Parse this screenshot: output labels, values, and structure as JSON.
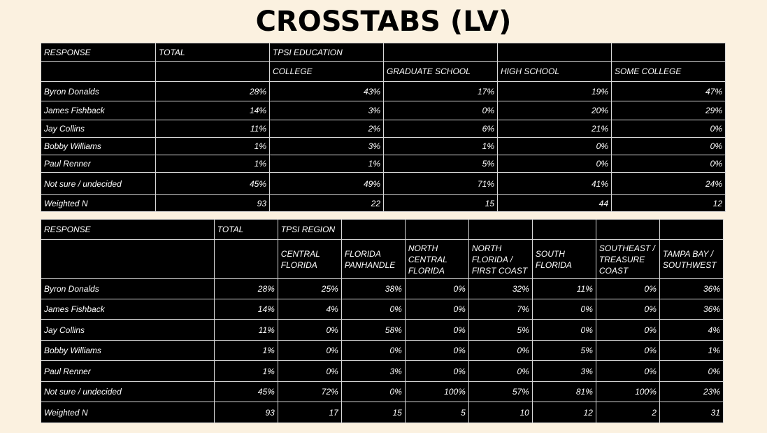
{
  "title": "CROSSTABS (LV)",
  "tables": [
    {
      "response_label": "RESPONSE",
      "total_label": "TOTAL",
      "group_label": "TPSI EDUCATION",
      "columns": [
        "COLLEGE",
        "GRADUATE SCHOOL",
        "HIGH SCHOOL",
        "SOME COLLEGE"
      ],
      "rows": [
        {
          "label": "Byron Donalds",
          "total": "28%",
          "values": [
            "43%",
            "17%",
            "19%",
            "47%"
          ]
        },
        {
          "label": "James Fishback",
          "total": "14%",
          "values": [
            "3%",
            "0%",
            "20%",
            "29%"
          ]
        },
        {
          "label": "Jay Collins",
          "total": "11%",
          "values": [
            "2%",
            "6%",
            "21%",
            "0%"
          ]
        },
        {
          "label": "Bobby Williams",
          "total": "1%",
          "values": [
            "3%",
            "1%",
            "0%",
            "0%"
          ]
        },
        {
          "label": "Paul Renner",
          "total": "1%",
          "values": [
            "1%",
            "5%",
            "0%",
            "0%"
          ]
        },
        {
          "label": "Not sure / undecided",
          "total": "45%",
          "values": [
            "49%",
            "71%",
            "41%",
            "24%"
          ]
        },
        {
          "label": "Weighted N",
          "total": "93",
          "values": [
            "22",
            "15",
            "44",
            "12"
          ]
        }
      ]
    },
    {
      "response_label": "RESPONSE",
      "total_label": "TOTAL",
      "group_label": "TPSI REGION",
      "columns": [
        "CENTRAL FLORIDA",
        "FLORIDA PANHANDLE",
        "NORTH CENTRAL FLORIDA",
        "NORTH FLORIDA / FIRST COAST",
        "SOUTH FLORIDA",
        "SOUTHEAST / TREASURE COAST",
        "TAMPA BAY / SOUTHWEST"
      ],
      "rows": [
        {
          "label": "Byron Donalds",
          "total": "28%",
          "values": [
            "25%",
            "38%",
            "0%",
            "32%",
            "11%",
            "0%",
            "36%"
          ]
        },
        {
          "label": "James Fishback",
          "total": "14%",
          "values": [
            "4%",
            "0%",
            "0%",
            "7%",
            "0%",
            "0%",
            "36%"
          ]
        },
        {
          "label": "Jay Collins",
          "total": "11%",
          "values": [
            "0%",
            "58%",
            "0%",
            "5%",
            "0%",
            "0%",
            "4%"
          ]
        },
        {
          "label": "Bobby Williams",
          "total": "1%",
          "values": [
            "0%",
            "0%",
            "0%",
            "0%",
            "5%",
            "0%",
            "1%"
          ]
        },
        {
          "label": "Paul Renner",
          "total": "1%",
          "values": [
            "0%",
            "3%",
            "0%",
            "0%",
            "3%",
            "0%",
            "0%"
          ]
        },
        {
          "label": "Not sure / undecided",
          "total": "45%",
          "values": [
            "72%",
            "0%",
            "100%",
            "57%",
            "81%",
            "100%",
            "23%"
          ]
        },
        {
          "label": "Weighted N",
          "total": "93",
          "values": [
            "17",
            "15",
            "5",
            "10",
            "12",
            "2",
            "31"
          ]
        }
      ]
    }
  ]
}
